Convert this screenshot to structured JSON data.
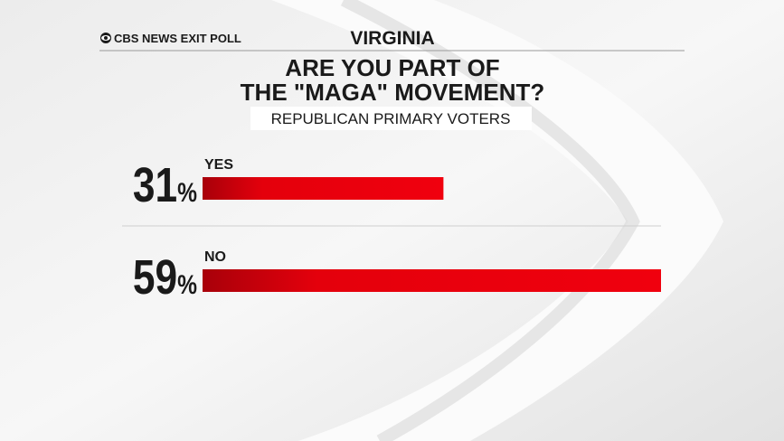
{
  "chart_data": {
    "type": "bar",
    "source": "CBS NEWS EXIT POLL",
    "region": "VIRGINIA",
    "title": [
      "ARE YOU PART OF",
      "THE \"MAGA\" MOVEMENT?"
    ],
    "subtitle": "REPUBLICAN PRIMARY VOTERS",
    "categories": [
      "YES",
      "NO"
    ],
    "values": [
      31,
      59
    ],
    "value_labels": [
      "31%",
      "59%"
    ],
    "color": "#e4000c"
  }
}
